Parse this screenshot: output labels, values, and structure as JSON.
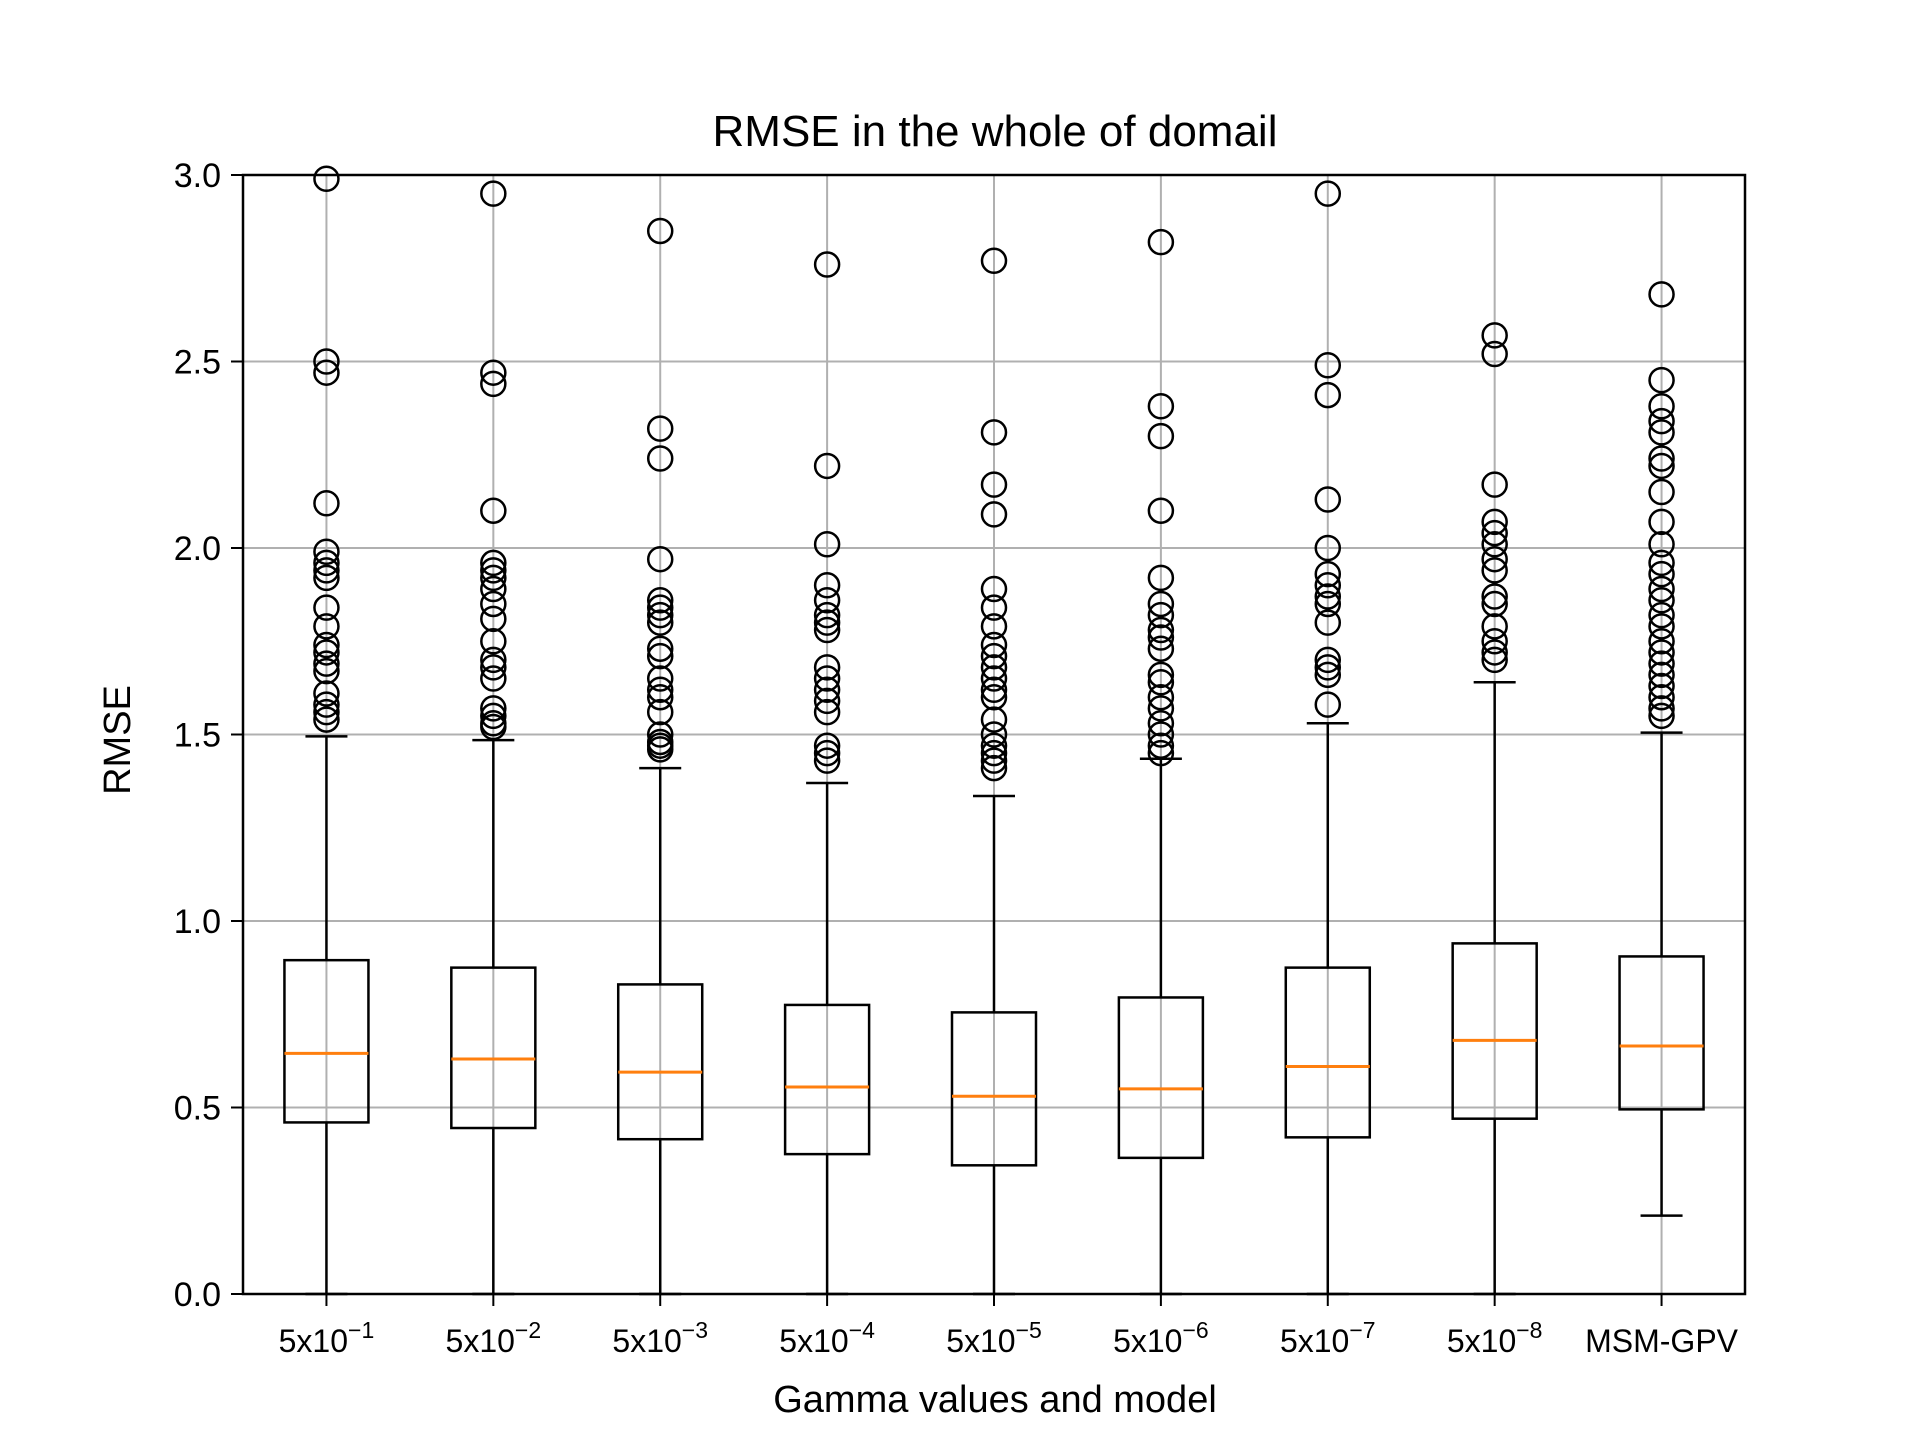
{
  "chart_data": {
    "type": "boxplot",
    "title": "RMSE in the whole of domail",
    "xlabel": "Gamma values and model",
    "ylabel": "RMSE",
    "ylim": [
      0.0,
      3.0
    ],
    "yticks": [
      0.0,
      0.5,
      1.0,
      1.5,
      2.0,
      2.5,
      3.0
    ],
    "ytick_labels": [
      "0.0",
      "0.5",
      "1.0",
      "1.5",
      "2.0",
      "2.5",
      "3.0"
    ],
    "grid": true,
    "categories": [
      {
        "base": "5x10",
        "exp": "−1"
      },
      {
        "base": "5x10",
        "exp": "−2"
      },
      {
        "base": "5x10",
        "exp": "−3"
      },
      {
        "base": "5x10",
        "exp": "−4"
      },
      {
        "base": "5x10",
        "exp": "−5"
      },
      {
        "base": "5x10",
        "exp": "−6"
      },
      {
        "base": "5x10",
        "exp": "−7"
      },
      {
        "base": "5x10",
        "exp": "−8"
      },
      {
        "base": "MSM-GPV",
        "exp": ""
      }
    ],
    "boxes": [
      {
        "whisker_low": 0.0,
        "q1": 0.46,
        "median": 0.645,
        "q3": 0.895,
        "whisker_high": 1.495,
        "fliers": [
          2.99,
          2.5,
          2.47,
          2.12,
          1.99,
          1.96,
          1.94,
          1.92,
          1.84,
          1.79,
          1.74,
          1.72,
          1.69,
          1.67,
          1.61,
          1.58,
          1.56,
          1.54
        ]
      },
      {
        "whisker_low": 0.0,
        "q1": 0.445,
        "median": 0.63,
        "q3": 0.875,
        "whisker_high": 1.485,
        "fliers": [
          2.95,
          2.47,
          2.44,
          2.1,
          1.96,
          1.94,
          1.92,
          1.89,
          1.85,
          1.81,
          1.75,
          1.7,
          1.68,
          1.65,
          1.57,
          1.55,
          1.53,
          1.52
        ]
      },
      {
        "whisker_low": 0.0,
        "q1": 0.415,
        "median": 0.595,
        "q3": 0.83,
        "whisker_high": 1.41,
        "fliers": [
          2.85,
          2.32,
          2.24,
          1.97,
          1.86,
          1.84,
          1.82,
          1.8,
          1.73,
          1.71,
          1.65,
          1.62,
          1.6,
          1.56,
          1.5,
          1.48,
          1.47,
          1.46
        ]
      },
      {
        "whisker_low": 0.0,
        "q1": 0.375,
        "median": 0.555,
        "q3": 0.775,
        "whisker_high": 1.37,
        "fliers": [
          2.76,
          2.22,
          2.01,
          1.9,
          1.86,
          1.82,
          1.8,
          1.78,
          1.68,
          1.65,
          1.62,
          1.59,
          1.56,
          1.47,
          1.45,
          1.43
        ]
      },
      {
        "whisker_low": 0.0,
        "q1": 0.345,
        "median": 0.53,
        "q3": 0.755,
        "whisker_high": 1.335,
        "fliers": [
          2.77,
          2.31,
          2.17,
          2.09,
          1.89,
          1.84,
          1.79,
          1.74,
          1.71,
          1.68,
          1.65,
          1.62,
          1.6,
          1.54,
          1.5,
          1.47,
          1.45,
          1.43,
          1.41
        ]
      },
      {
        "whisker_low": 0.0,
        "q1": 0.365,
        "median": 0.55,
        "q3": 0.795,
        "whisker_high": 1.435,
        "fliers": [
          2.82,
          2.38,
          2.3,
          2.1,
          1.92,
          1.85,
          1.82,
          1.78,
          1.76,
          1.73,
          1.66,
          1.64,
          1.6,
          1.57,
          1.53,
          1.5,
          1.47,
          1.45
        ]
      },
      {
        "whisker_low": 0.0,
        "q1": 0.42,
        "median": 0.61,
        "q3": 0.875,
        "whisker_high": 1.53,
        "fliers": [
          2.95,
          2.49,
          2.41,
          2.13,
          2.0,
          1.93,
          1.9,
          1.87,
          1.85,
          1.8,
          1.7,
          1.68,
          1.66,
          1.58
        ]
      },
      {
        "whisker_low": 0.0,
        "q1": 0.47,
        "median": 0.68,
        "q3": 0.94,
        "whisker_high": 1.64,
        "fliers": [
          2.57,
          2.52,
          2.17,
          2.07,
          2.04,
          2.01,
          1.97,
          1.94,
          1.87,
          1.85,
          1.79,
          1.75,
          1.72,
          1.7
        ]
      },
      {
        "whisker_low": 0.21,
        "q1": 0.495,
        "median": 0.665,
        "q3": 0.905,
        "whisker_high": 1.505,
        "fliers": [
          2.68,
          2.45,
          2.38,
          2.34,
          2.31,
          2.24,
          2.22,
          2.15,
          2.07,
          2.01,
          1.96,
          1.93,
          1.89,
          1.86,
          1.82,
          1.79,
          1.75,
          1.72,
          1.69,
          1.66,
          1.63,
          1.6,
          1.57,
          1.55
        ]
      }
    ],
    "colors": {
      "box": "#000000",
      "median": "#ff7f0e",
      "grid": "#b0b0b0"
    }
  }
}
